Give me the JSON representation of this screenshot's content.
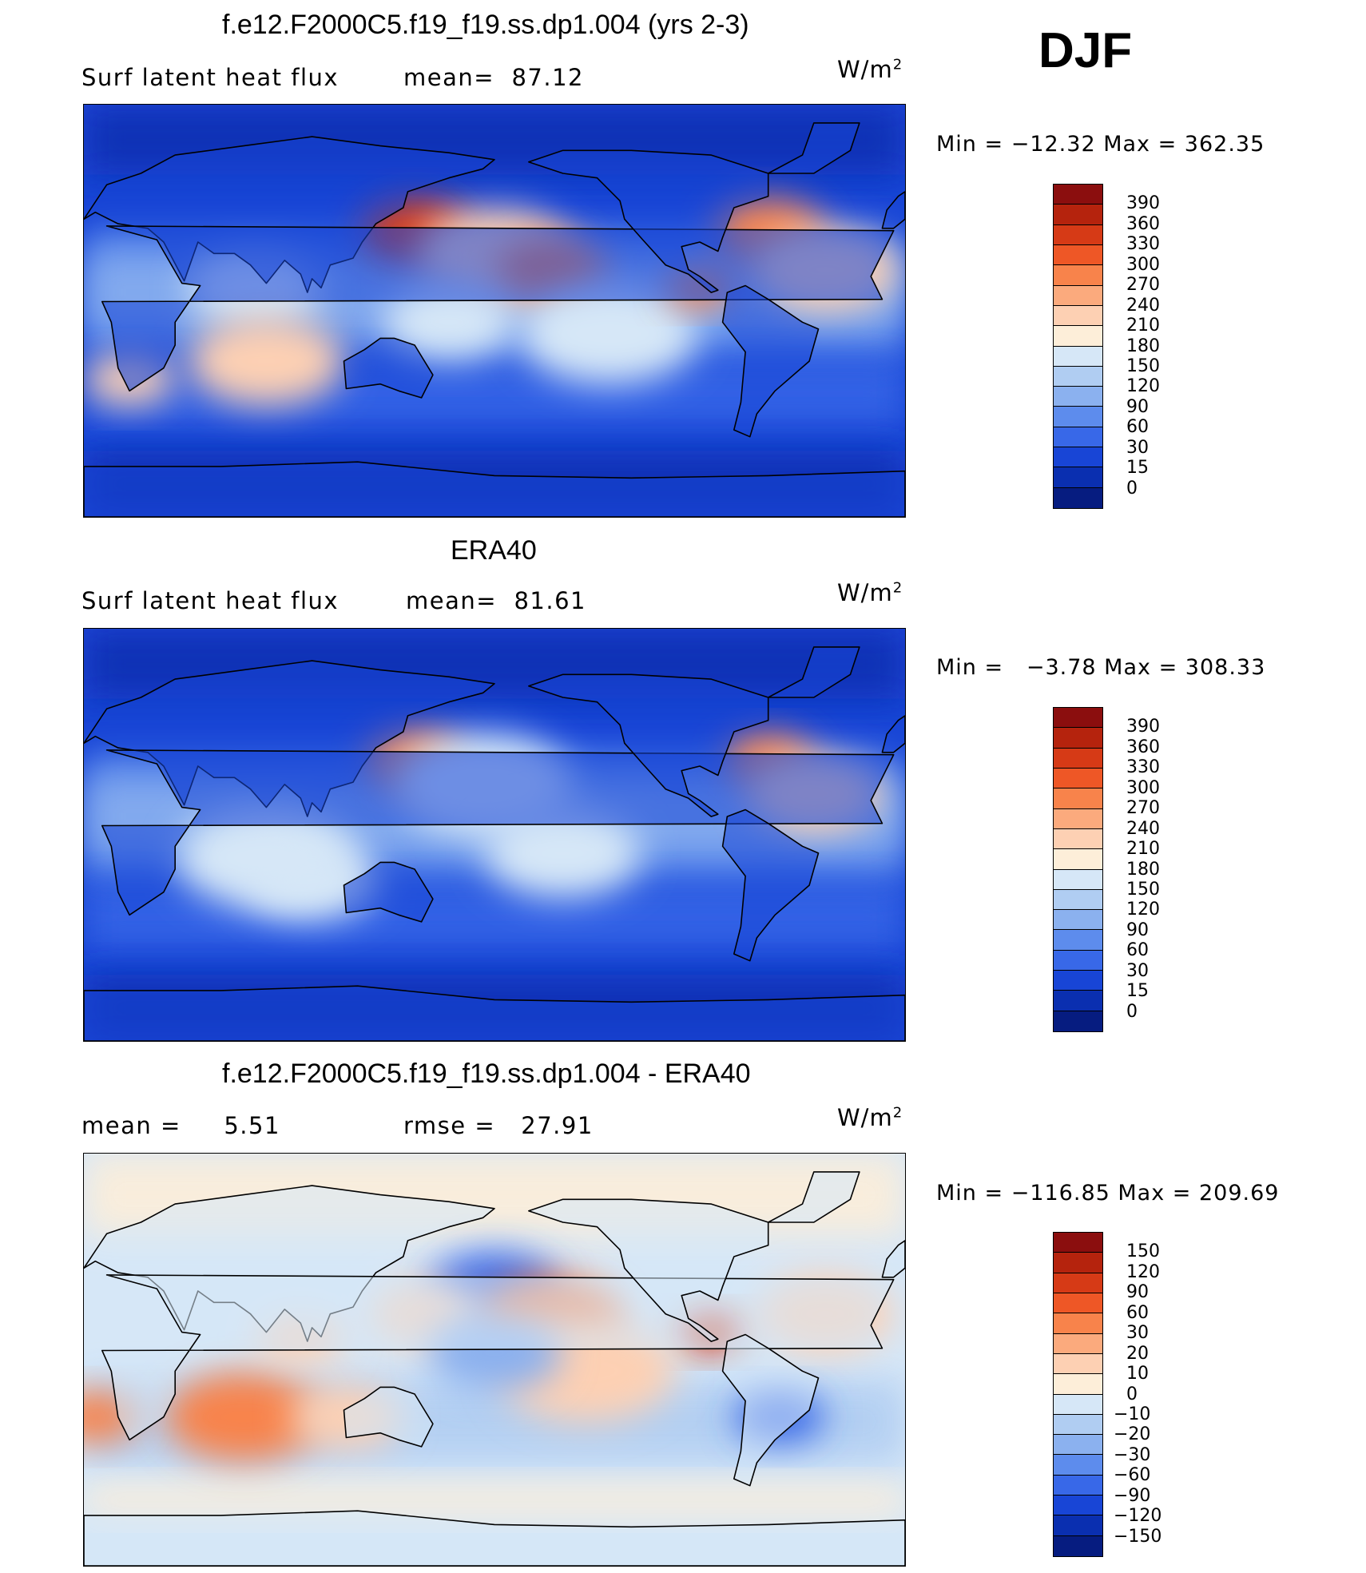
{
  "header": {
    "season": "DJF"
  },
  "panels": [
    {
      "id": "model",
      "title": "f.e12.F2000C5.f19_f19.ss.dp1.004 (yrs 2-3)",
      "left_text": "Surf latent heat flux",
      "mid_text": "mean=  87.12",
      "units_main": "W/m",
      "units_sup": "2",
      "minmax": "Min = −12.32 Max = 362.35",
      "cbar_labels": [
        "390",
        "360",
        "330",
        "300",
        "270",
        "240",
        "210",
        "180",
        "150",
        "120",
        "90",
        "60",
        "30",
        "15",
        "0"
      ],
      "cbar_colors": [
        "#8b0e0e",
        "#b5230d",
        "#d63a16",
        "#ee5726",
        "#f8834b",
        "#fbaa7d",
        "#fdd0b3",
        "#fdeed9",
        "#d6e7f7",
        "#b0cdf2",
        "#8bb1ef",
        "#5d8ced",
        "#3868e8",
        "#1845d6",
        "#0a2fb0",
        "#061c80"
      ],
      "blobs": [
        {
          "lon": 145,
          "lat": 35,
          "s": 1.0,
          "kind": "warm3"
        },
        {
          "lon": 180,
          "lat": 25,
          "s": 1.4,
          "kind": "warm1"
        },
        {
          "lon": 205,
          "lat": 18,
          "s": 1.0,
          "kind": "warm2"
        },
        {
          "lon": 160,
          "lat": -5,
          "s": 1.2,
          "kind": "light"
        },
        {
          "lon": 230,
          "lat": -10,
          "s": 1.6,
          "kind": "light"
        },
        {
          "lon": 300,
          "lat": 35,
          "s": 1.0,
          "kind": "warm2"
        },
        {
          "lon": 325,
          "lat": 18,
          "s": 1.3,
          "kind": "warm1"
        },
        {
          "lon": 75,
          "lat": 10,
          "s": 1.2,
          "kind": "light"
        },
        {
          "lon": 80,
          "lat": -22,
          "s": 1.4,
          "kind": "warm1"
        },
        {
          "lon": 20,
          "lat": -30,
          "s": 0.8,
          "kind": "warm1"
        },
        {
          "lon": 270,
          "lat": 10,
          "s": 0.6,
          "kind": "warm2"
        }
      ]
    },
    {
      "id": "obs",
      "title": "ERA40",
      "left_text": "Surf latent heat flux",
      "mid_text": "mean=  81.61",
      "units_main": "W/m",
      "units_sup": "2",
      "minmax": "Min =   −3.78 Max = 308.33",
      "cbar_labels": [
        "390",
        "360",
        "330",
        "300",
        "270",
        "240",
        "210",
        "180",
        "150",
        "120",
        "90",
        "60",
        "30",
        "15",
        "0"
      ],
      "cbar_colors": [
        "#8b0e0e",
        "#b5230d",
        "#d63a16",
        "#ee5726",
        "#f8834b",
        "#fbaa7d",
        "#fdd0b3",
        "#fdeed9",
        "#d6e7f7",
        "#b0cdf2",
        "#8bb1ef",
        "#5d8ced",
        "#3868e8",
        "#1845d6",
        "#0a2fb0",
        "#061c80"
      ],
      "blobs": [
        {
          "lon": 145,
          "lat": 33,
          "s": 0.9,
          "kind": "warm2"
        },
        {
          "lon": 175,
          "lat": 22,
          "s": 1.6,
          "kind": "light"
        },
        {
          "lon": 300,
          "lat": 33,
          "s": 0.8,
          "kind": "warm2"
        },
        {
          "lon": 320,
          "lat": 18,
          "s": 1.2,
          "kind": "warm1"
        },
        {
          "lon": 210,
          "lat": -8,
          "s": 1.4,
          "kind": "light"
        },
        {
          "lon": 80,
          "lat": -10,
          "s": 1.6,
          "kind": "light"
        },
        {
          "lon": 100,
          "lat": -20,
          "s": 1.2,
          "kind": "light"
        }
      ]
    },
    {
      "id": "diff",
      "title": "f.e12.F2000C5.f19_f19.ss.dp1.004 - ERA40",
      "left_text": "mean =     5.51",
      "mid_text": "rmse =   27.91",
      "units_main": "W/m",
      "units_sup": "2",
      "minmax": "Min = −116.85 Max = 209.69",
      "cbar_labels": [
        "150",
        "120",
        "90",
        "60",
        "30",
        "20",
        "10",
        "0",
        "−10",
        "−20",
        "−30",
        "−60",
        "−90",
        "−120",
        "−150"
      ],
      "cbar_colors": [
        "#8b0e0e",
        "#b5230d",
        "#d63a16",
        "#ee5726",
        "#f8834b",
        "#fbaa7d",
        "#fdd0b3",
        "#fdeed9",
        "#d6e7f7",
        "#b0cdf2",
        "#8bb1ef",
        "#5d8ced",
        "#3868e8",
        "#1845d6",
        "#0a2fb0",
        "#061c80"
      ],
      "blobs": [
        {
          "lon": 180,
          "lat": 30,
          "s": 1.2,
          "kind": "cool2"
        },
        {
          "lon": 205,
          "lat": 18,
          "s": 1.3,
          "kind": "warm2"
        },
        {
          "lon": 150,
          "lat": 20,
          "s": 1.0,
          "kind": "warm1"
        },
        {
          "lon": 275,
          "lat": 12,
          "s": 0.6,
          "kind": "warm3"
        },
        {
          "lon": 325,
          "lat": 20,
          "s": 1.2,
          "kind": "warm1"
        },
        {
          "lon": 70,
          "lat": -25,
          "s": 1.4,
          "kind": "warm2"
        },
        {
          "lon": 115,
          "lat": -25,
          "s": 1.0,
          "kind": "warm1"
        },
        {
          "lon": 220,
          "lat": -5,
          "s": 1.6,
          "kind": "warm1"
        },
        {
          "lon": 180,
          "lat": 3,
          "s": 1.2,
          "kind": "cool1"
        },
        {
          "lon": 305,
          "lat": -25,
          "s": 0.8,
          "kind": "cool2"
        },
        {
          "lon": 5,
          "lat": -25,
          "s": 0.8,
          "kind": "warm2"
        },
        {
          "lon": 95,
          "lat": 10,
          "s": 0.8,
          "kind": "warm1"
        }
      ]
    }
  ]
}
